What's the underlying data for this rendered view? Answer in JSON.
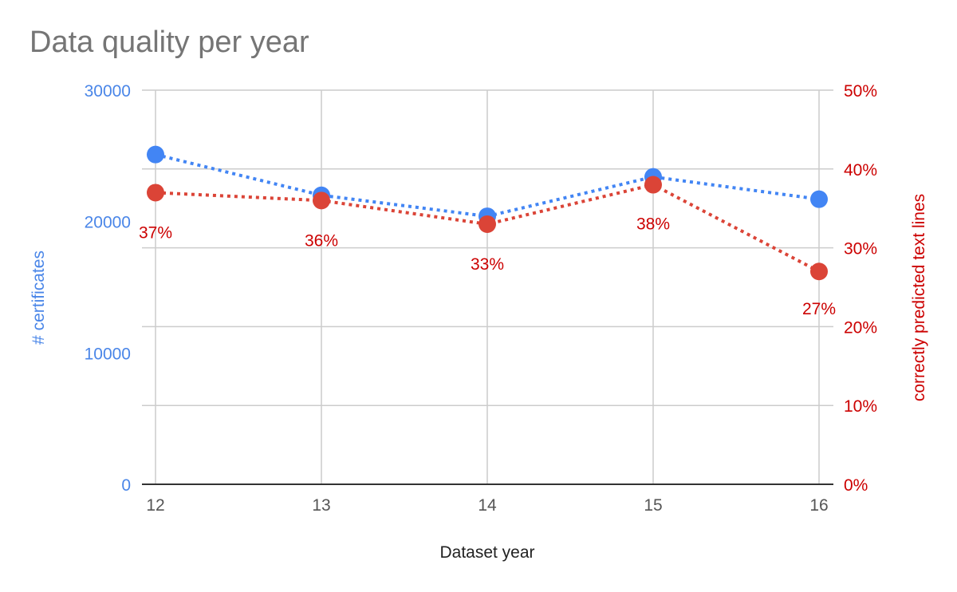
{
  "chart_data": {
    "type": "line",
    "title": "Data quality per year",
    "xlabel": "Dataset year",
    "categories": [
      "12",
      "13",
      "14",
      "15",
      "16"
    ],
    "ylabel_left": "# certificates",
    "ylabel_right": "correctly predicted text lines",
    "y_left_ticks": [
      "0",
      "10000",
      "20000",
      "30000"
    ],
    "y_right_ticks": [
      "0%",
      "10%",
      "20%",
      "30%",
      "40%",
      "50%"
    ],
    "ylim_left": [
      0,
      30000
    ],
    "ylim_right": [
      0,
      0.5
    ],
    "grid": true,
    "series": [
      {
        "name": "# certificates",
        "axis": "left",
        "color": "#4285F4",
        "line_style": "dotted",
        "values": [
          25100,
          22000,
          20400,
          23400,
          21700
        ]
      },
      {
        "name": "correctly predicted text lines",
        "axis": "right",
        "color": "#DB4437",
        "line_style": "dotted",
        "values": [
          0.37,
          0.36,
          0.33,
          0.38,
          0.27
        ],
        "data_labels": [
          "37%",
          "36%",
          "33%",
          "38%",
          "27%"
        ]
      }
    ],
    "colors": {
      "left_axis_text": "#4A86E8",
      "right_axis_text": "#CC0000",
      "title_text": "#757575",
      "gridline": "#CCCCCC"
    }
  }
}
